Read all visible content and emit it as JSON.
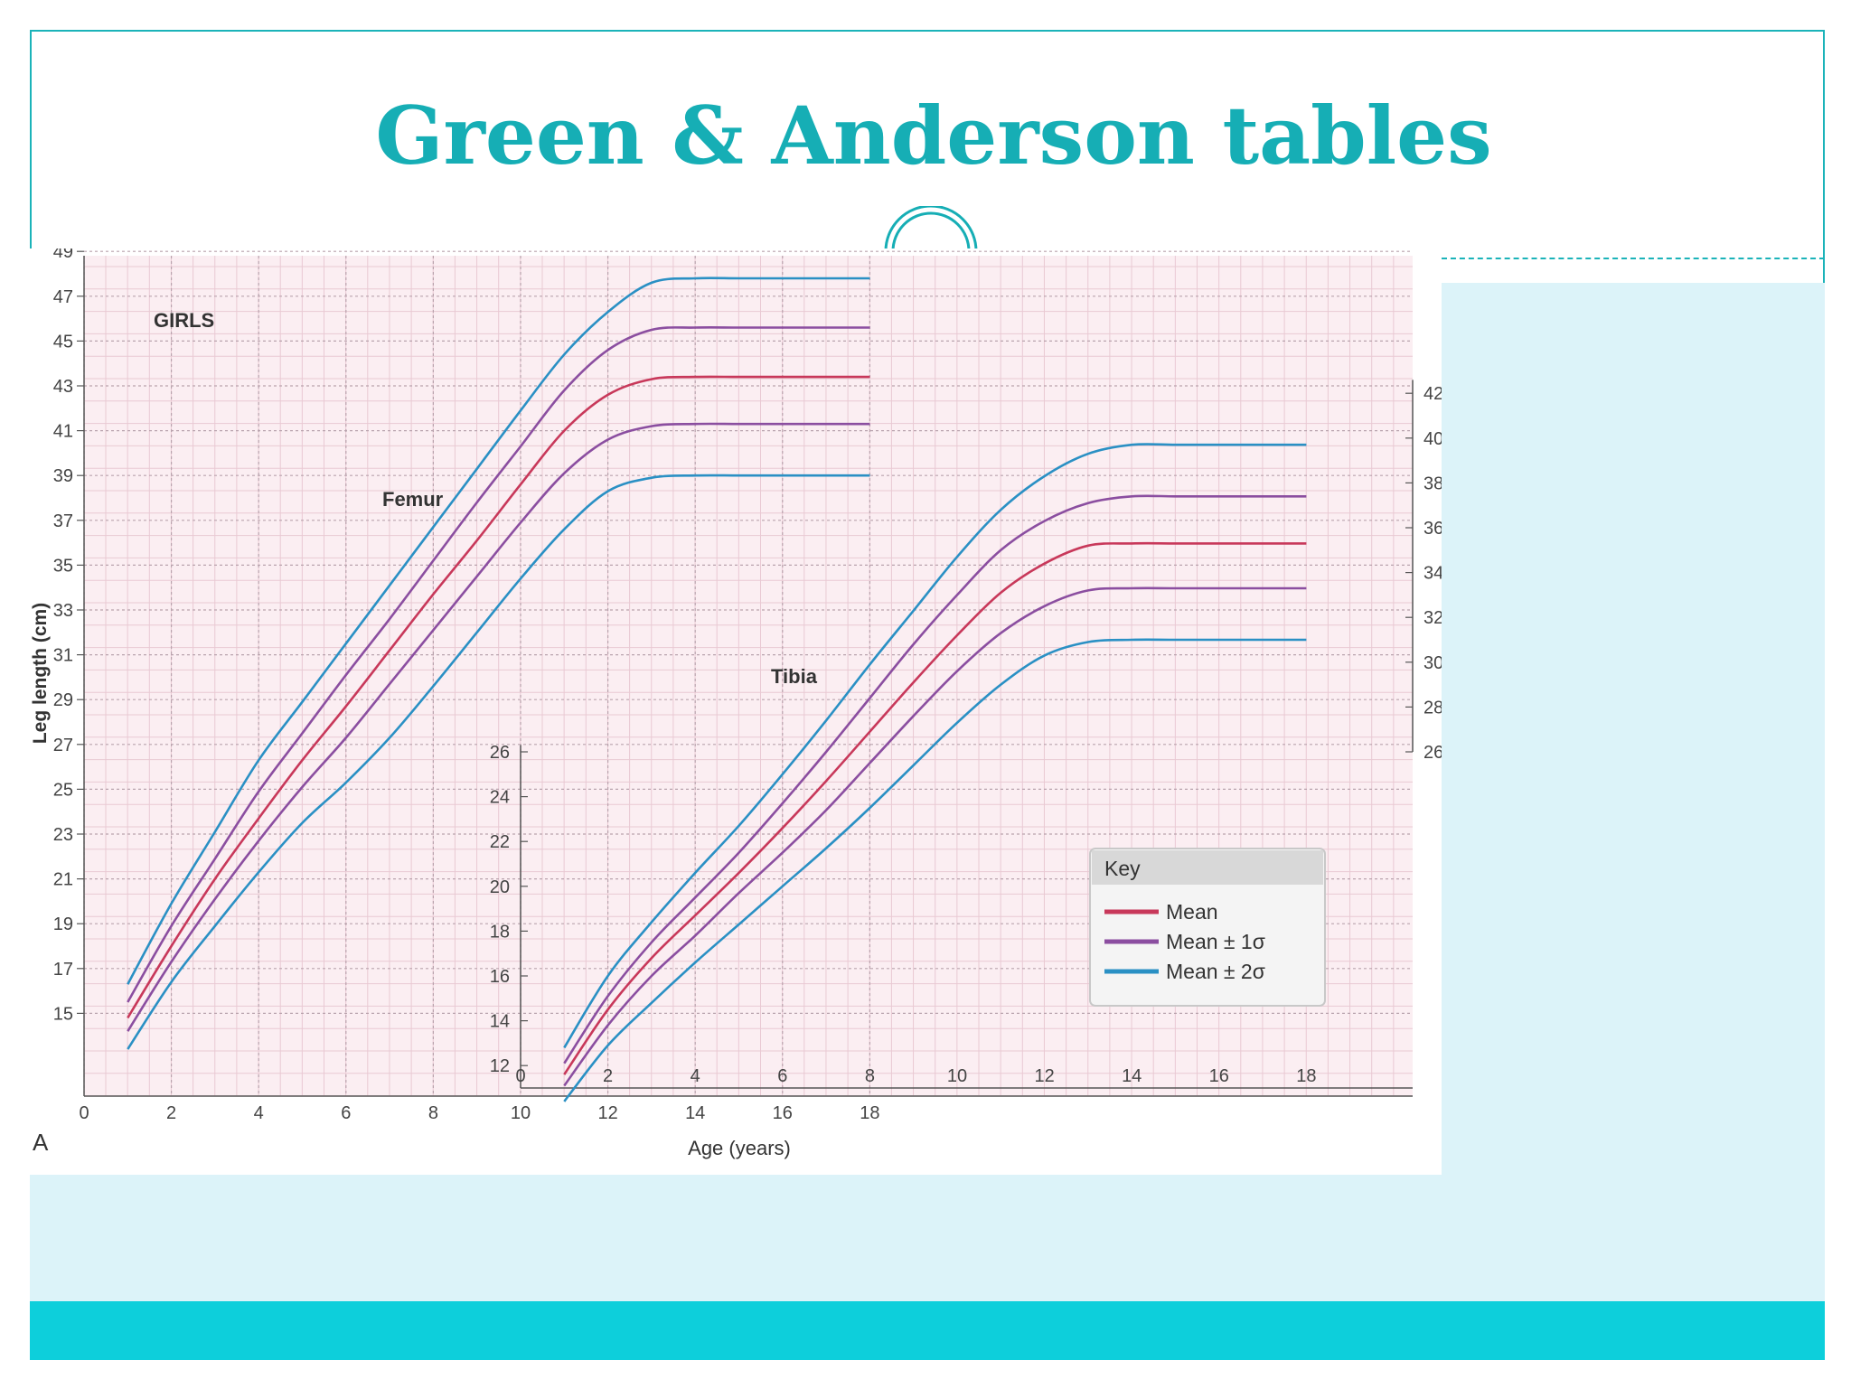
{
  "slide": {
    "title": "Green & Anderson tables"
  },
  "colors": {
    "accent": "#16aeb5",
    "bar": "#0dcfdb",
    "panel": "#dcf3f9",
    "mean": "#c8385a",
    "sd1": "#8b4ea0",
    "sd2": "#2a90c4",
    "grid_bg": "#fbeef2"
  },
  "chart_data": [
    {
      "type": "line",
      "panel_label": "GIRLS",
      "title": "Femur",
      "ylabel": "Leg length (cm)",
      "xlabel": "Age (years)",
      "figure_letter": "A",
      "xlim": [
        0,
        18
      ],
      "ylim": [
        13,
        50
      ],
      "x_ticks": [
        0,
        2,
        4,
        6,
        8,
        10,
        12,
        14,
        16,
        18
      ],
      "y_ticks": [
        15,
        17,
        19,
        21,
        23,
        25,
        27,
        29,
        31,
        33,
        35,
        37,
        39,
        41,
        43,
        45,
        47,
        49
      ],
      "grid": true,
      "x": [
        1,
        2,
        3,
        4,
        5,
        6,
        7,
        8,
        9,
        10,
        11,
        12,
        13,
        14,
        15,
        16,
        17,
        18
      ],
      "series": [
        {
          "name": "+2σ",
          "style": "sd2",
          "values": [
            16.3,
            19.9,
            23.1,
            26.3,
            28.9,
            31.5,
            34.1,
            36.7,
            39.3,
            41.9,
            44.4,
            46.3,
            47.6,
            47.8,
            47.8,
            47.8,
            47.8,
            47.8
          ]
        },
        {
          "name": "+1σ",
          "style": "sd1",
          "values": [
            15.5,
            18.9,
            21.9,
            24.9,
            27.5,
            30.1,
            32.6,
            35.2,
            37.8,
            40.3,
            42.8,
            44.6,
            45.5,
            45.6,
            45.6,
            45.6,
            45.6,
            45.6
          ]
        },
        {
          "name": "Mean",
          "style": "mean",
          "values": [
            14.8,
            18.0,
            21.0,
            23.7,
            26.3,
            28.7,
            31.2,
            33.7,
            36.1,
            38.6,
            41.0,
            42.6,
            43.3,
            43.4,
            43.4,
            43.4,
            43.4,
            43.4
          ]
        },
        {
          "name": "-1σ",
          "style": "sd1",
          "values": [
            14.2,
            17.3,
            20.1,
            22.7,
            25.1,
            27.3,
            29.7,
            32.1,
            34.5,
            36.9,
            39.1,
            40.6,
            41.2,
            41.3,
            41.3,
            41.3,
            41.3,
            41.3
          ]
        },
        {
          "name": "-2σ",
          "style": "sd2",
          "values": [
            13.4,
            16.4,
            18.9,
            21.3,
            23.5,
            25.3,
            27.3,
            29.6,
            32.0,
            34.4,
            36.6,
            38.3,
            38.9,
            39.0,
            39.0,
            39.0,
            39.0,
            39.0
          ]
        }
      ]
    },
    {
      "type": "line",
      "title": "Tibia",
      "xlim": [
        0,
        18
      ],
      "ylim": [
        11,
        43
      ],
      "x_ticks": [
        0,
        2,
        4,
        6,
        8,
        10,
        12,
        14,
        16,
        18
      ],
      "y_ticks_left": [
        12,
        14,
        16,
        18,
        20,
        22,
        24,
        26
      ],
      "y_ticks_right": [
        26,
        28,
        30,
        32,
        34,
        36,
        38,
        40,
        42
      ],
      "x": [
        1,
        2,
        3,
        4,
        5,
        6,
        7,
        8,
        9,
        10,
        11,
        12,
        13,
        14,
        15,
        16,
        17,
        18
      ],
      "series": [
        {
          "name": "+2σ",
          "style": "sd2",
          "values": [
            12.8,
            16.0,
            18.4,
            20.6,
            22.7,
            25.0,
            27.4,
            29.9,
            32.3,
            34.7,
            36.8,
            38.3,
            39.3,
            39.7,
            39.7,
            39.7,
            39.7,
            39.7
          ]
        },
        {
          "name": "+1σ",
          "style": "sd1",
          "values": [
            12.1,
            15.1,
            17.5,
            19.5,
            21.5,
            23.7,
            26.0,
            28.4,
            30.8,
            33.0,
            35.0,
            36.3,
            37.1,
            37.4,
            37.4,
            37.4,
            37.4,
            37.4
          ]
        },
        {
          "name": "Mean",
          "style": "mean",
          "values": [
            11.6,
            14.5,
            16.8,
            18.7,
            20.6,
            22.6,
            24.7,
            26.9,
            29.1,
            31.2,
            33.1,
            34.4,
            35.2,
            35.3,
            35.3,
            35.3,
            35.3,
            35.3
          ]
        },
        {
          "name": "-1σ",
          "style": "sd1",
          "values": [
            11.1,
            13.8,
            16.0,
            17.8,
            19.7,
            21.5,
            23.4,
            25.5,
            27.6,
            29.6,
            31.3,
            32.5,
            33.2,
            33.3,
            33.3,
            33.3,
            33.3,
            33.3
          ]
        },
        {
          "name": "-2σ",
          "style": "sd2",
          "values": [
            10.4,
            12.9,
            14.8,
            16.6,
            18.3,
            20.0,
            21.7,
            23.5,
            25.4,
            27.3,
            29.0,
            30.3,
            30.9,
            31.0,
            31.0,
            31.0,
            31.0,
            31.0
          ]
        }
      ]
    }
  ],
  "legend": {
    "title": "Key",
    "items": [
      {
        "label": "Mean",
        "style": "mean"
      },
      {
        "label": "Mean ± 1σ",
        "style": "sd1"
      },
      {
        "label": "Mean ± 2σ",
        "style": "sd2"
      }
    ],
    "placement": "bottom-right"
  }
}
